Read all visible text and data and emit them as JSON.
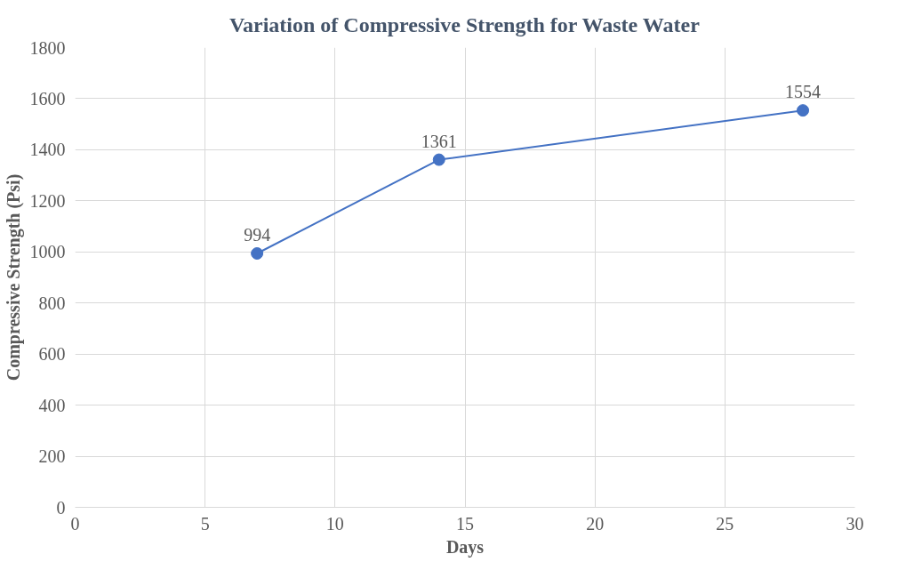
{
  "chart_data": {
    "type": "line",
    "title": "Variation of Compressive Strength for Waste Water",
    "xlabel": "Days",
    "ylabel": "Compressive Strength (Psi)",
    "x": [
      7,
      14,
      28
    ],
    "series": [
      {
        "color": "#4472c4",
        "values": [
          994,
          1361,
          1554
        ]
      }
    ],
    "xlim": [
      0,
      30
    ],
    "xticks": [
      0,
      5,
      10,
      15,
      20,
      25,
      30
    ],
    "ylim": [
      0,
      1800
    ],
    "yticks": [
      0,
      200,
      400,
      600,
      800,
      1000,
      1200,
      1400,
      1600,
      1800
    ],
    "grid": true,
    "marker": "circle",
    "data_labels": true
  }
}
